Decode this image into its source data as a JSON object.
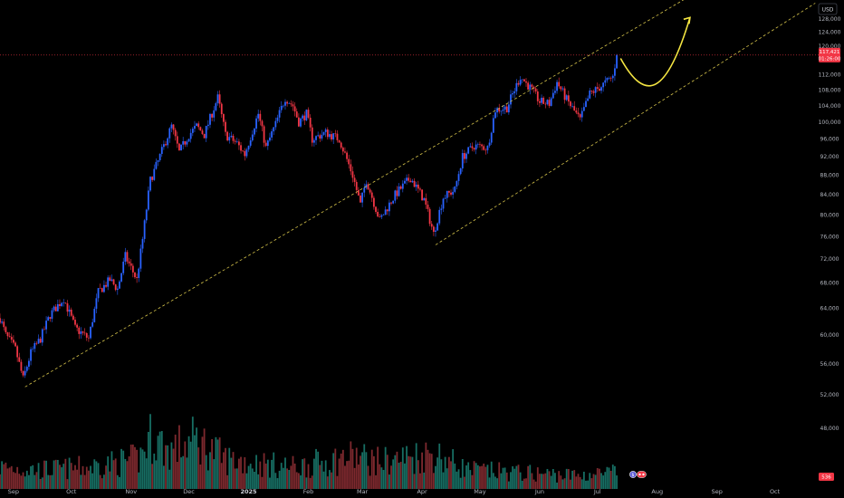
{
  "currency_label": "USD",
  "price_badge": {
    "price": "117,421",
    "countdown": "01:26:00",
    "color": "#f23645"
  },
  "volume_badge": {
    "value": "536"
  },
  "colors": {
    "background": "#000000",
    "up": "#2962ff",
    "down": "#f23645",
    "volume_up": "#1a7a6e",
    "volume_down": "#8b2e33",
    "channel": "#d4c24a",
    "forecast_arrow": "#f5e642",
    "axis_text": "#b2b5be"
  },
  "icons": [
    "dollar-circle-icon",
    "calendar-flag-icon"
  ],
  "chart_data": {
    "type": "candlestick",
    "instrument_currency": "USD",
    "x_axis": {
      "labels": [
        "Sep",
        "Oct",
        "Nov",
        "Dec",
        "2025",
        "Feb",
        "Mar",
        "Apr",
        "May",
        "Jun",
        "Jul",
        "Aug",
        "Sep",
        "Oct"
      ],
      "range": [
        "2024-08-25",
        "2025-10-20"
      ]
    },
    "y_axis": {
      "scale": "log",
      "ticks": [
        48000,
        52000,
        56000,
        60000,
        64000,
        68000,
        72000,
        76000,
        80000,
        84000,
        88000,
        92000,
        96000,
        100000,
        104000,
        108000,
        112000,
        116000,
        120000,
        124000,
        128000
      ],
      "tick_labels": [
        "48,000",
        "52,000",
        "56,000",
        "60,000",
        "64,000",
        "68,000",
        "72,000",
        "76,000",
        "80,000",
        "84,000",
        "88,000",
        "92,000",
        "96,000",
        "100,000",
        "104,000",
        "108,000",
        "112,000",
        "116,000",
        "120,000",
        "124,000",
        "128,000"
      ],
      "range": [
        41500,
        134000
      ]
    },
    "last_price": 117421,
    "price_path": [
      [
        "2024-08-25",
        62500
      ],
      [
        "2024-08-28",
        60000
      ],
      [
        "2024-09-02",
        58000
      ],
      [
        "2024-09-06",
        54000
      ],
      [
        "2024-09-10",
        57500
      ],
      [
        "2024-09-15",
        59500
      ],
      [
        "2024-09-20",
        63000
      ],
      [
        "2024-09-27",
        65500
      ],
      [
        "2024-10-03",
        61000
      ],
      [
        "2024-10-10",
        59500
      ],
      [
        "2024-10-15",
        66500
      ],
      [
        "2024-10-21",
        68500
      ],
      [
        "2024-10-25",
        67000
      ],
      [
        "2024-10-29",
        72500
      ],
      [
        "2024-11-04",
        68500
      ],
      [
        "2024-11-07",
        75500
      ],
      [
        "2024-11-11",
        87000
      ],
      [
        "2024-11-15",
        91000
      ],
      [
        "2024-11-22",
        99000
      ],
      [
        "2024-11-26",
        93000
      ],
      [
        "2024-12-01",
        97000
      ],
      [
        "2024-12-05",
        99000
      ],
      [
        "2024-12-09",
        97000
      ],
      [
        "2024-12-16",
        106000
      ],
      [
        "2024-12-20",
        97000
      ],
      [
        "2024-12-26",
        95000
      ],
      [
        "2024-12-30",
        92500
      ],
      [
        "2025-01-06",
        102000
      ],
      [
        "2025-01-10",
        94000
      ],
      [
        "2025-01-15",
        99500
      ],
      [
        "2025-01-20",
        106000
      ],
      [
        "2025-01-24",
        104000
      ],
      [
        "2025-01-27",
        100000
      ],
      [
        "2025-01-31",
        102000
      ],
      [
        "2025-02-03",
        96000
      ],
      [
        "2025-02-10",
        97500
      ],
      [
        "2025-02-17",
        96000
      ],
      [
        "2025-02-24",
        88000
      ],
      [
        "2025-02-28",
        82000
      ],
      [
        "2025-03-03",
        87000
      ],
      [
        "2025-03-10",
        79000
      ],
      [
        "2025-03-18",
        84000
      ],
      [
        "2025-03-26",
        87500
      ],
      [
        "2025-04-02",
        83000
      ],
      [
        "2025-04-07",
        76500
      ],
      [
        "2025-04-12",
        83500
      ],
      [
        "2025-04-18",
        85000
      ],
      [
        "2025-04-22",
        92000
      ],
      [
        "2025-04-28",
        94500
      ],
      [
        "2025-05-05",
        94000
      ],
      [
        "2025-05-09",
        103000
      ],
      [
        "2025-05-15",
        103500
      ],
      [
        "2025-05-22",
        111500
      ],
      [
        "2025-05-28",
        108000
      ],
      [
        "2025-06-01",
        105000
      ],
      [
        "2025-06-06",
        104500
      ],
      [
        "2025-06-10",
        110000
      ],
      [
        "2025-06-15",
        105500
      ],
      [
        "2025-06-22",
        100500
      ],
      [
        "2025-06-27",
        107000
      ],
      [
        "2025-07-03",
        109000
      ],
      [
        "2025-07-09",
        111500
      ],
      [
        "2025-07-11",
        117500
      ]
    ],
    "volume_levels": [
      [
        "2024-08-25",
        0.4
      ],
      [
        "2024-09-15",
        0.35
      ],
      [
        "2024-10-10",
        0.4
      ],
      [
        "2024-11-05",
        0.55
      ],
      [
        "2024-11-12",
        1.0
      ],
      [
        "2024-11-20",
        0.7
      ],
      [
        "2024-12-05",
        0.9
      ],
      [
        "2024-12-20",
        0.55
      ],
      [
        "2025-01-10",
        0.45
      ],
      [
        "2025-01-25",
        0.4
      ],
      [
        "2025-02-25",
        0.6
      ],
      [
        "2025-03-10",
        0.5
      ],
      [
        "2025-04-07",
        0.65
      ],
      [
        "2025-04-25",
        0.35
      ],
      [
        "2025-05-20",
        0.3
      ],
      [
        "2025-06-20",
        0.25
      ],
      [
        "2025-07-11",
        0.3
      ]
    ],
    "channel_lines": [
      {
        "name": "upper",
        "points": [
          [
            "2024-09-07",
            53000
          ],
          [
            "2025-08-28",
            139000
          ]
        ]
      },
      {
        "name": "lower",
        "points": [
          [
            "2025-04-08",
            74500
          ],
          [
            "2025-10-22",
            133000
          ]
        ]
      }
    ],
    "horizontal_lines": [
      {
        "price": 117421,
        "style": "dotted"
      }
    ],
    "forecast_arrow": {
      "points": [
        [
          "2025-07-13",
          116500
        ],
        [
          "2025-07-26",
          111500
        ],
        [
          "2025-08-06",
          114000
        ],
        [
          "2025-08-18",
          128500
        ]
      ],
      "direction": "up"
    },
    "grid": false
  }
}
